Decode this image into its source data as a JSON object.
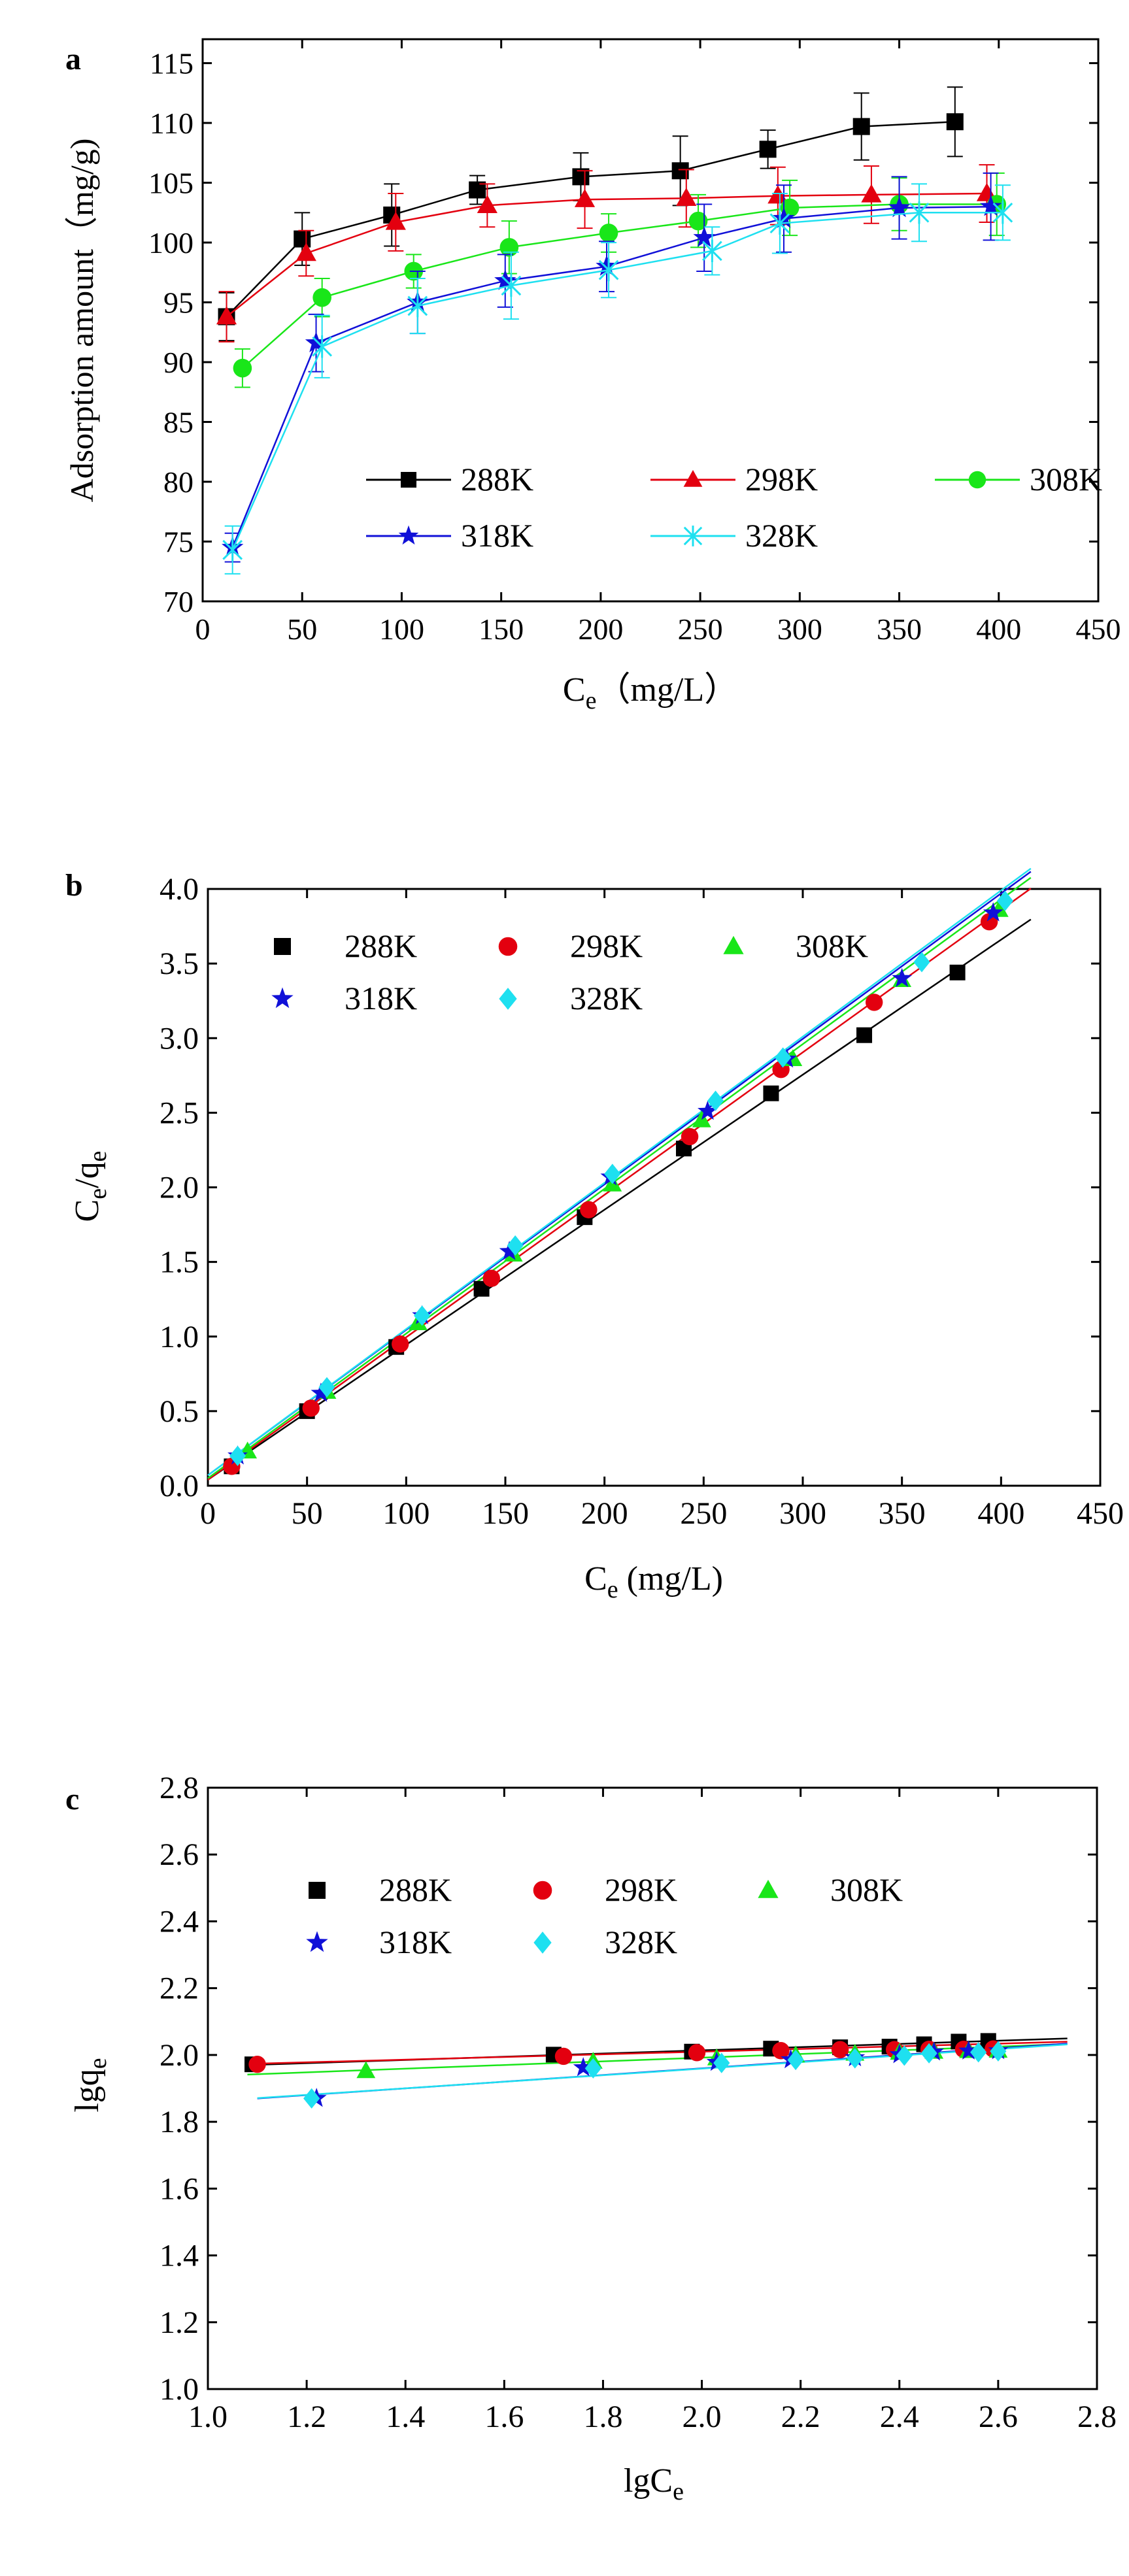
{
  "figure": {
    "panels": [
      {
        "label": "a"
      },
      {
        "label": "b"
      },
      {
        "label": "c"
      }
    ]
  },
  "colors": {
    "288K": "#000000",
    "298K": "#e3000f",
    "308K": "#19e619",
    "318K": "#1010d8",
    "328K": "#1ee0f0"
  },
  "chart_data": [
    {
      "type": "line",
      "panel": "a",
      "title": "",
      "xlabel": "C",
      "xlabel_sub": "e",
      "xlabel_unit": "（mg/L）",
      "ylabel": "Adsorption amount（mg/g)",
      "xlim": [
        0,
        450
      ],
      "ylim": [
        70,
        117
      ],
      "xticks": [
        0,
        50,
        100,
        150,
        200,
        250,
        300,
        350,
        400,
        450
      ],
      "yticks": [
        70,
        75,
        80,
        85,
        90,
        95,
        100,
        105,
        110,
        115
      ],
      "legend": "inside-bottom, 3 columns",
      "series": [
        {
          "name": "288K",
          "marker": "square",
          "x": [
            12,
            50,
            95,
            138,
            190,
            240,
            284,
            331,
            378
          ],
          "y": [
            93.8,
            100.3,
            102.3,
            104.4,
            105.5,
            106.0,
            107.8,
            109.7,
            110.1
          ],
          "err": [
            2.0,
            2.2,
            2.6,
            1.2,
            2.0,
            2.9,
            1.6,
            2.8,
            2.9
          ]
        },
        {
          "name": "298K",
          "marker": "triangle",
          "x": [
            12,
            52,
            97,
            143,
            192,
            243,
            289,
            336,
            394
          ],
          "y": [
            93.8,
            99.1,
            101.7,
            103.1,
            103.6,
            103.7,
            103.9,
            104.0,
            104.1
          ],
          "err": [
            2.1,
            1.9,
            2.4,
            1.8,
            2.4,
            2.4,
            2.4,
            2.4,
            2.4
          ]
        },
        {
          "name": "308K",
          "marker": "circle",
          "x": [
            20,
            60,
            106,
            154,
            204,
            249,
            295,
            350,
            399
          ],
          "y": [
            89.5,
            95.4,
            97.6,
            99.6,
            100.8,
            101.8,
            102.9,
            103.2,
            103.2
          ],
          "err": [
            1.6,
            1.6,
            1.4,
            2.2,
            1.6,
            2.2,
            2.3,
            2.2,
            2.6
          ]
        },
        {
          "name": "318K",
          "marker": "star",
          "x": [
            15,
            57,
            108,
            152,
            203,
            252,
            292,
            350,
            396
          ],
          "y": [
            74.5,
            91.6,
            95.0,
            96.8,
            98.0,
            100.4,
            102.0,
            102.9,
            103.0
          ],
          "err": [
            1.2,
            2.4,
            2.6,
            2.2,
            2.1,
            2.8,
            2.8,
            2.6,
            2.8
          ]
        },
        {
          "name": "328K",
          "marker": "asterisk",
          "x": [
            15,
            60,
            108,
            155,
            204,
            256,
            290,
            360,
            402
          ],
          "y": [
            74.3,
            91.3,
            94.7,
            96.4,
            97.7,
            99.3,
            101.6,
            102.5,
            102.5
          ],
          "err": [
            2.0,
            2.6,
            2.3,
            2.8,
            2.3,
            2.0,
            2.5,
            2.4,
            2.3
          ]
        }
      ]
    },
    {
      "type": "scatter",
      "panel": "b",
      "title": "",
      "xlabel": "C",
      "xlabel_sub": "e",
      "xlabel_unit": " (mg/L)",
      "ylabel": "C",
      "ylabel_sub": "e",
      "ylabel_mid": "/q",
      "ylabel_sub2": "e",
      "xlim": [
        0,
        450
      ],
      "ylim": [
        0,
        4.0
      ],
      "xticks": [
        0,
        50,
        100,
        150,
        200,
        250,
        300,
        350,
        400,
        450
      ],
      "yticks": [
        "0.0",
        "0.5",
        "1.0",
        "1.5",
        "2.0",
        "2.5",
        "3.0",
        "3.5",
        "4.0"
      ],
      "legend": "top-left, 3 columns",
      "fit_x_range": [
        0,
        415
      ],
      "series": [
        {
          "name": "288K",
          "marker": "square",
          "x": [
            12,
            50,
            95,
            138,
            190,
            240,
            284,
            331,
            378
          ],
          "y": [
            0.13,
            0.5,
            0.93,
            1.32,
            1.8,
            2.26,
            2.63,
            3.02,
            3.44
          ],
          "fit": {
            "slope": 0.00905,
            "intercept": 0.04
          }
        },
        {
          "name": "298K",
          "marker": "circle",
          "x": [
            12,
            52,
            97,
            143,
            192,
            243,
            289,
            336,
            394
          ],
          "y": [
            0.13,
            0.52,
            0.95,
            1.39,
            1.85,
            2.34,
            2.79,
            3.24,
            3.78
          ],
          "fit": {
            "slope": 0.00955,
            "intercept": 0.04
          }
        },
        {
          "name": "308K",
          "marker": "triangle",
          "x": [
            20,
            60,
            106,
            154,
            204,
            249,
            295,
            350,
            399
          ],
          "y": [
            0.23,
            0.63,
            1.09,
            1.55,
            2.02,
            2.45,
            2.86,
            3.39,
            3.86
          ],
          "fit": {
            "slope": 0.0097,
            "intercept": 0.05
          }
        },
        {
          "name": "318K",
          "marker": "star",
          "x": [
            15,
            57,
            108,
            152,
            203,
            252,
            292,
            350,
            396
          ],
          "y": [
            0.2,
            0.62,
            1.14,
            1.57,
            2.07,
            2.51,
            2.86,
            3.4,
            3.84
          ],
          "fit": {
            "slope": 0.00975,
            "intercept": 0.07
          }
        },
        {
          "name": "328K",
          "marker": "diamond",
          "x": [
            15,
            60,
            108,
            155,
            204,
            256,
            290,
            360,
            402
          ],
          "y": [
            0.2,
            0.66,
            1.14,
            1.61,
            2.09,
            2.58,
            2.87,
            3.51,
            3.92
          ],
          "fit": {
            "slope": 0.0098,
            "intercept": 0.07
          }
        }
      ]
    },
    {
      "type": "scatter",
      "panel": "c",
      "title": "",
      "xlabel": "lgC",
      "xlabel_sub": "e",
      "ylabel": "lgq",
      "ylabel_sub": "e",
      "xlim": [
        1.0,
        2.8
      ],
      "ylim": [
        1.0,
        2.8
      ],
      "xticks": [
        "1.0",
        "1.2",
        "1.4",
        "1.6",
        "1.8",
        "2.0",
        "2.2",
        "2.4",
        "2.6",
        "2.8"
      ],
      "yticks": [
        "1.0",
        "1.2",
        "1.4",
        "1.6",
        "1.8",
        "2.0",
        "2.2",
        "2.4",
        "2.6",
        "2.8"
      ],
      "legend": "top-left, 3 columns",
      "series": [
        {
          "name": "288K",
          "marker": "square",
          "x": [
            1.09,
            1.7,
            1.98,
            2.14,
            2.28,
            2.38,
            2.45,
            2.52,
            2.58
          ],
          "y": [
            1.972,
            2.001,
            2.01,
            2.019,
            2.023,
            2.025,
            2.032,
            2.04,
            2.042
          ],
          "fit": {
            "x_range": [
              1.08,
              2.74
            ],
            "slope": 0.048,
            "intercept": 1.918
          }
        },
        {
          "name": "298K",
          "marker": "circle",
          "x": [
            1.1,
            1.72,
            1.99,
            2.16,
            2.28,
            2.39,
            2.46,
            2.53,
            2.59
          ],
          "y": [
            1.972,
            1.996,
            2.007,
            2.013,
            2.016,
            2.016,
            2.017,
            2.017,
            2.018
          ],
          "fit": {
            "x_range": [
              1.08,
              2.74
            ],
            "slope": 0.04,
            "intercept": 1.93
          }
        },
        {
          "name": "308K",
          "marker": "triangle",
          "x": [
            1.32,
            1.78,
            2.03,
            2.19,
            2.31,
            2.4,
            2.47,
            2.54,
            2.6
          ],
          "y": [
            1.952,
            1.98,
            1.99,
            1.999,
            2.004,
            2.007,
            2.01,
            2.012,
            2.013
          ],
          "fit": {
            "x_range": [
              1.08,
              2.74
            ],
            "slope": 0.055,
            "intercept": 1.882
          }
        },
        {
          "name": "318K",
          "marker": "star",
          "x": [
            1.22,
            1.76,
            2.03,
            2.18,
            2.31,
            2.4,
            2.47,
            2.54,
            2.6
          ],
          "y": [
            1.87,
            1.962,
            1.978,
            1.986,
            1.992,
            2.001,
            2.009,
            2.012,
            2.013
          ],
          "fit": {
            "x_range": [
              1.1,
              2.74
            ],
            "slope": 0.1,
            "intercept": 1.76
          }
        },
        {
          "name": "328K",
          "marker": "diamond",
          "x": [
            1.21,
            1.78,
            2.04,
            2.19,
            2.31,
            2.41,
            2.46,
            2.56,
            2.6
          ],
          "y": [
            1.87,
            1.96,
            1.976,
            1.985,
            1.99,
            1.998,
            2.005,
            2.008,
            2.011
          ],
          "fit": {
            "x_range": [
              1.1,
              2.74
            ],
            "slope": 0.098,
            "intercept": 1.763
          }
        }
      ]
    }
  ]
}
